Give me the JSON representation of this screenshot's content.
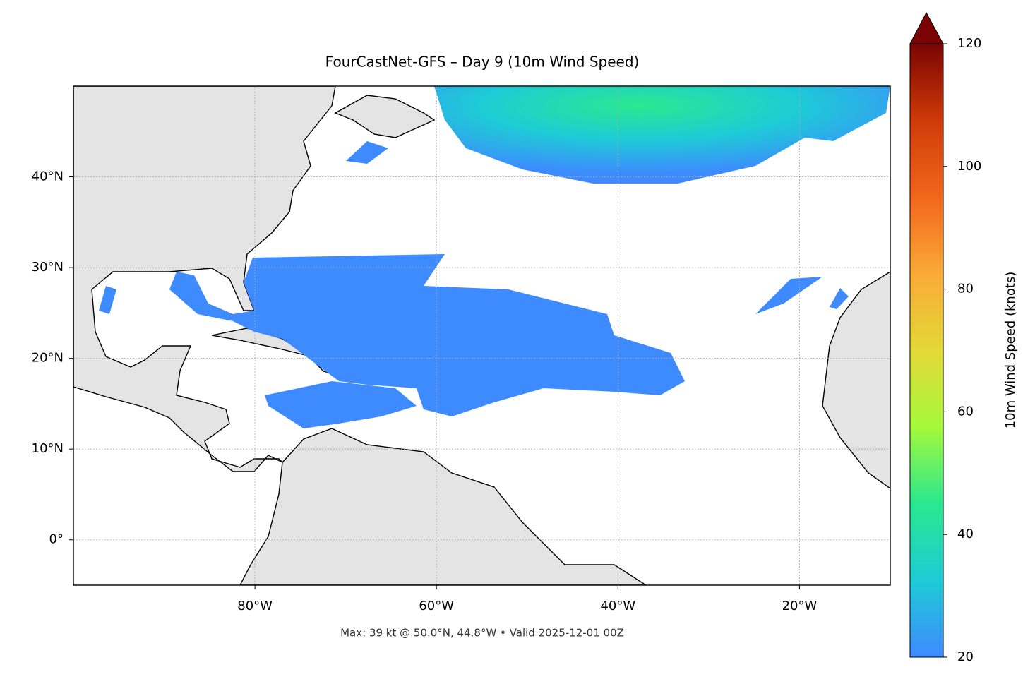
{
  "title": "FourCastNet-GFS – Day 9 (10m Wind Speed)",
  "footer": "Max: 39 kt @ 50.0°N, 44.8°W • Valid 2025-12-01 00Z",
  "map": {
    "lon_range": [
      -100,
      -10
    ],
    "lat_range": [
      -5,
      50
    ],
    "lon_ticks": [
      {
        "value": -80,
        "label": "80°W"
      },
      {
        "value": -60,
        "label": "60°W"
      },
      {
        "value": -40,
        "label": "40°W"
      },
      {
        "value": -20,
        "label": "20°W"
      }
    ],
    "lat_ticks": [
      {
        "value": 0,
        "label": "0°"
      },
      {
        "value": 10,
        "label": "10°N"
      },
      {
        "value": 20,
        "label": "20°N"
      },
      {
        "value": 30,
        "label": "30°N"
      },
      {
        "value": 40,
        "label": "40°N"
      }
    ],
    "grid": true
  },
  "colorbar": {
    "label": "10m Wind Speed (knots)",
    "range": [
      20,
      120
    ],
    "ticks": [
      20,
      40,
      60,
      80,
      100,
      120
    ],
    "colors": [
      "#3d8bff",
      "#1ecbd6",
      "#2ae88f",
      "#a4f93a",
      "#e3d836",
      "#fbaa38",
      "#f2661c",
      "#cf3a08",
      "#7a0403"
    ],
    "extend_color": "#7a0403"
  }
}
